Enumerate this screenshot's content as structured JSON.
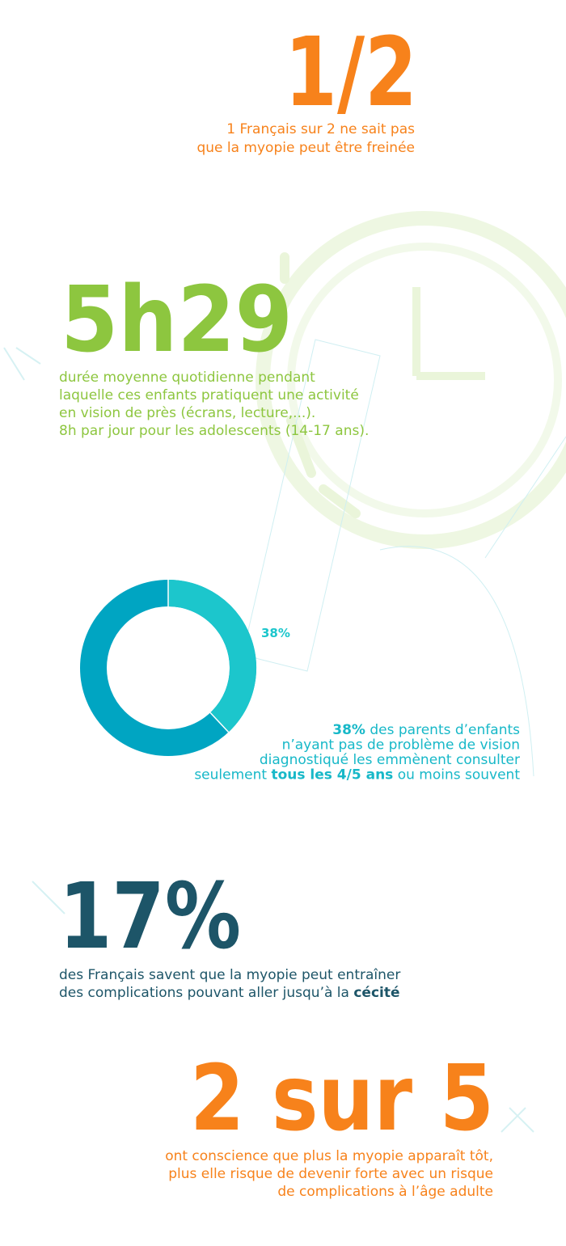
{
  "stat1": {
    "headline": "1/2",
    "lines": [
      [
        {
          "text": "1 Français sur 2 ne sait pas"
        }
      ],
      [
        {
          "text": "que la myopie peut être freinée"
        }
      ]
    ]
  },
  "stat2": {
    "headline": "5h29",
    "lines": [
      [
        {
          "text": "durée moyenne quotidienne pendant"
        }
      ],
      [
        {
          "text": "laquelle ces enfants pratiquent une activité"
        }
      ],
      [
        {
          "text": "en vision de près (écrans, lecture,...)."
        }
      ],
      [
        {
          "text": "8h par jour pour les adolescents (14-17 ans)."
        }
      ]
    ]
  },
  "stat3": {
    "donut": {
      "value": 38,
      "value_label": "38%",
      "max": 100,
      "color": "#1cc6cc",
      "rest_color": "#00a5c2"
    },
    "lines": [
      [
        {
          "text": "38%",
          "bold": true
        },
        {
          "text": " des parents d’enfants"
        }
      ],
      [
        {
          "text": "n’ayant pas de problème de vision"
        }
      ],
      [
        {
          "text": "diagnostiqué les emmènent consulter"
        }
      ],
      [
        {
          "text": "seulement "
        },
        {
          "text": "tous les 4/5 ans",
          "bold": true
        },
        {
          "text": " ou moins souvent"
        }
      ]
    ]
  },
  "stat4": {
    "headline": "17%",
    "lines": [
      [
        {
          "text": "des Français savent que la myopie peut entraîner"
        }
      ],
      [
        {
          "text": "des complications pouvant aller jusqu’à la "
        },
        {
          "text": "cécité",
          "bold": true
        }
      ]
    ]
  },
  "stat5": {
    "headline": "2 sur 5",
    "lines": [
      [
        {
          "text": "ont conscience que plus la myopie apparaît tôt,"
        }
      ],
      [
        {
          "text": "plus elle risque de devenir forte avec un risque"
        }
      ],
      [
        {
          "text": "de complications à l’âge adulte"
        }
      ]
    ]
  }
}
